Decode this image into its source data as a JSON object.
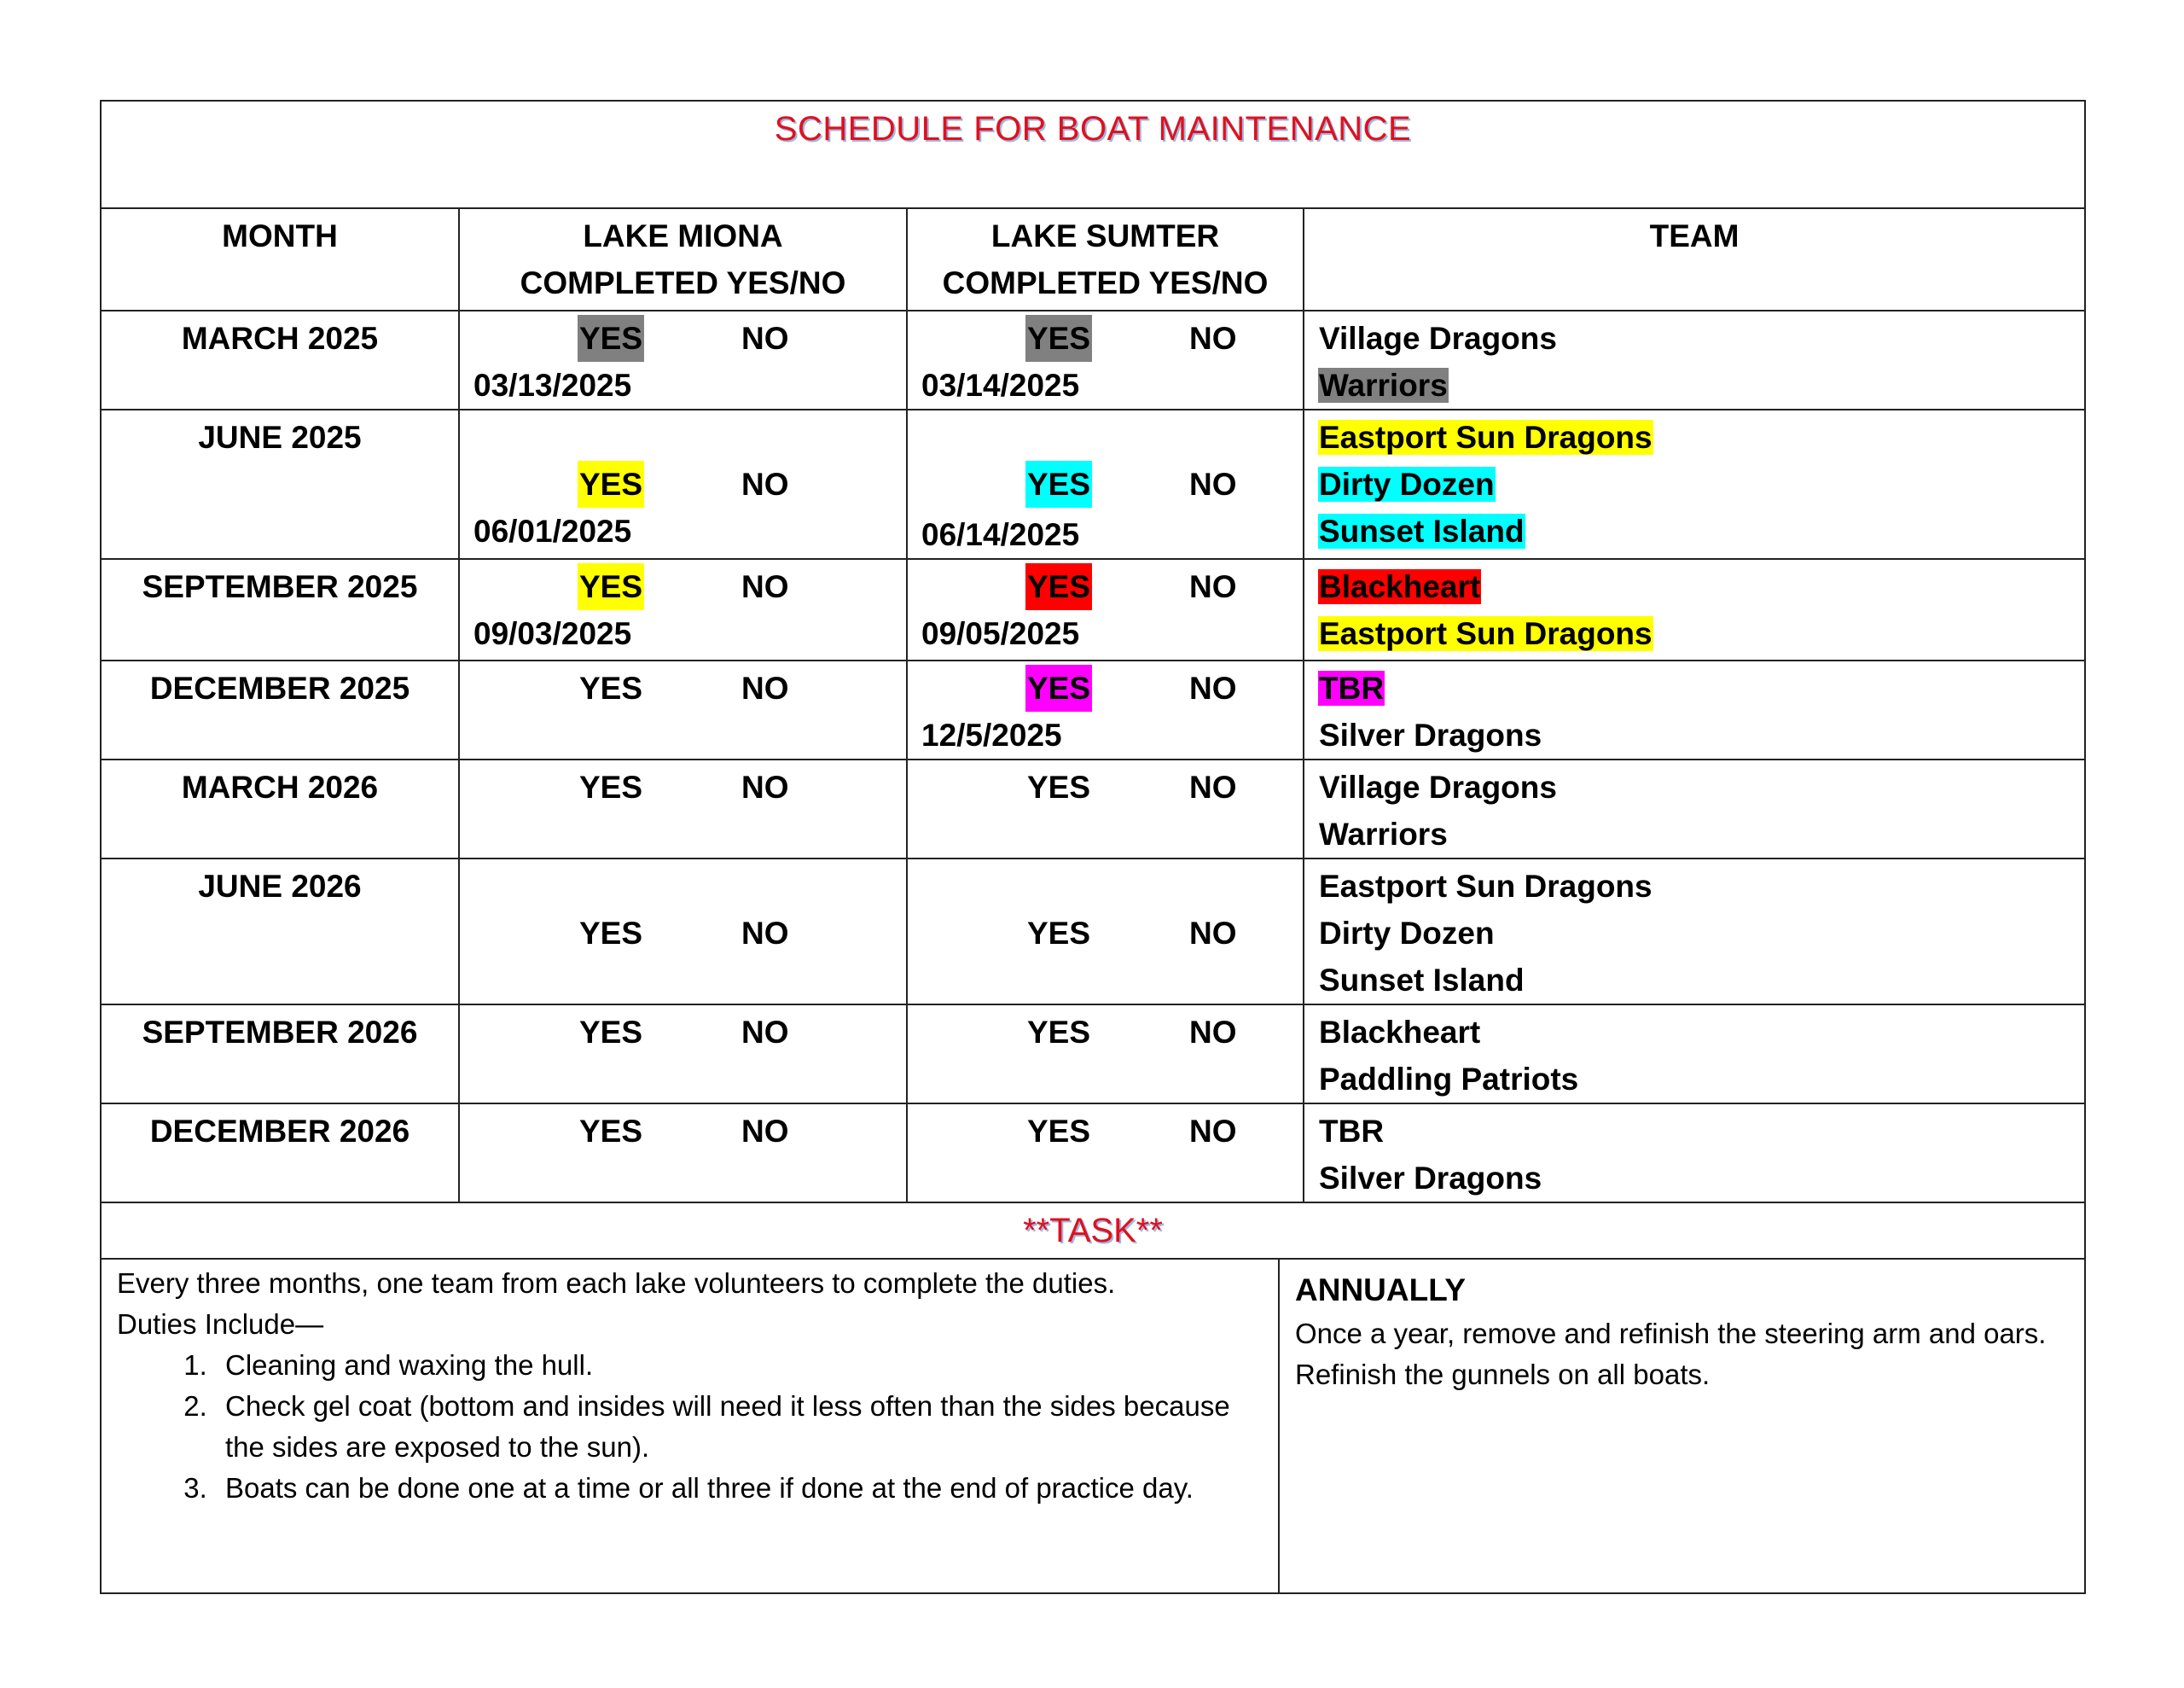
{
  "title": "SCHEDULE FOR BOAT MAINTENANCE",
  "headers": {
    "month": "MONTH",
    "miona_line1": "LAKE MIONA",
    "miona_line2": "COMPLETED YES/NO",
    "sumter_line1": "LAKE SUMTER",
    "sumter_line2": "COMPLETED YES/NO",
    "team": "TEAM"
  },
  "highlight_colors": {
    "gray": "#808080",
    "yellow": "#ffff00",
    "cyan": "#00ffff",
    "red": "#ff0000",
    "magenta": "#ff00ff"
  },
  "rows": [
    {
      "month": "MARCH 2025",
      "miona": {
        "yes": "YES",
        "no": "NO",
        "yes_highlight": "gray",
        "date": "03/13/2025"
      },
      "sumter": {
        "yes": "YES",
        "no": "NO",
        "yes_highlight": "gray",
        "date": "03/14/2025"
      },
      "teams": [
        {
          "name": "Village Dragons"
        },
        {
          "name": "Warriors",
          "highlight": "gray"
        }
      ]
    },
    {
      "month": "JUNE 2025",
      "miona": {
        "yes": "YES",
        "no": "NO",
        "yes_highlight": "yellow",
        "date": "06/01/2025"
      },
      "sumter": {
        "yes": "YES",
        "no": "NO",
        "yes_highlight": "cyan",
        "date": "06/14/2025"
      },
      "teams": [
        {
          "name": "Eastport Sun Dragons",
          "highlight": "yellow"
        },
        {
          "name": "Dirty Dozen",
          "highlight": "cyan"
        },
        {
          "name": "Sunset Island",
          "highlight": "cyan"
        }
      ]
    },
    {
      "month": "SEPTEMBER 2025",
      "miona": {
        "yes": "YES",
        "no": "NO",
        "yes_highlight": "yellow",
        "date": "09/03/2025"
      },
      "sumter": {
        "yes": "YES",
        "no": "NO",
        "yes_highlight": "red",
        "date": "09/05/2025"
      },
      "teams": [
        {
          "name": "Blackheart",
          "highlight": "red"
        },
        {
          "name": "Eastport Sun Dragons",
          "highlight": "yellow"
        }
      ]
    },
    {
      "month": "DECEMBER 2025",
      "miona": {
        "yes": "YES",
        "no": "NO"
      },
      "sumter": {
        "yes": "YES",
        "no": "NO",
        "yes_highlight": "magenta",
        "date": "12/5/2025"
      },
      "teams": [
        {
          "name": "TBR",
          "highlight": "magenta"
        },
        {
          "name": "Silver Dragons"
        }
      ]
    },
    {
      "month": "MARCH 2026",
      "miona": {
        "yes": "YES",
        "no": "NO"
      },
      "sumter": {
        "yes": "YES",
        "no": "NO"
      },
      "teams": [
        {
          "name": "Village Dragons"
        },
        {
          "name": "Warriors"
        }
      ]
    },
    {
      "month": "JUNE 2026",
      "miona": {
        "yes": "YES",
        "no": "NO"
      },
      "sumter": {
        "yes": "YES",
        "no": "NO"
      },
      "teams": [
        {
          "name": "Eastport Sun Dragons"
        },
        {
          "name": "Dirty Dozen"
        },
        {
          "name": "Sunset Island"
        }
      ]
    },
    {
      "month": "SEPTEMBER 2026",
      "miona": {
        "yes": "YES",
        "no": "NO"
      },
      "sumter": {
        "yes": "YES",
        "no": "NO"
      },
      "teams": [
        {
          "name": "Blackheart"
        },
        {
          "name": "Paddling Patriots"
        }
      ]
    },
    {
      "month": "DECEMBER 2026",
      "miona": {
        "yes": "YES",
        "no": "NO"
      },
      "sumter": {
        "yes": "YES",
        "no": "NO"
      },
      "teams": [
        {
          "name": "TBR"
        },
        {
          "name": "Silver Dragons"
        }
      ]
    }
  ],
  "task": {
    "heading": "**TASK**",
    "intro": "Every three months, one team from each lake volunteers to complete the duties.",
    "duties_label": "Duties Include—",
    "duties": [
      "Cleaning and waxing the hull.",
      "Check gel coat (bottom and insides will need it less often than the sides because the sides are exposed to the sun).",
      "Boats can be done one at a time or all three if done at the end of practice day."
    ],
    "annually_heading": "ANNUALLY",
    "annually_text": "Once a year, remove and refinish the steering arm and oars.  Refinish the gunnels on all boats."
  }
}
